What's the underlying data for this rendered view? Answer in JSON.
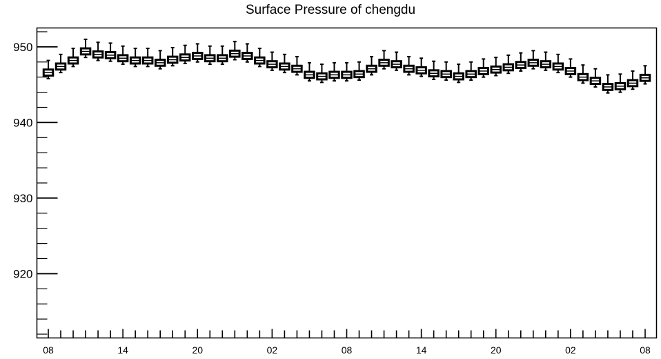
{
  "chart_data": {
    "type": "box",
    "title": "Surface Pressure of chengdu",
    "xlabel": "",
    "ylabel": "",
    "ylim": [
      911.5,
      952.5
    ],
    "y_ticks": [
      920,
      930,
      940,
      950
    ],
    "x_tick_labels": [
      "08",
      "14",
      "20",
      "02",
      "08",
      "14",
      "20",
      "02",
      "08"
    ],
    "grid": false,
    "legend": "none",
    "series": [
      {
        "medians": [
          946.6,
          947.4,
          948.2,
          949.4,
          949.0,
          948.9,
          948.5,
          948.2,
          948.2,
          947.9,
          948.3,
          948.6,
          948.8,
          948.5,
          948.5,
          949.1,
          948.8,
          948.2,
          947.7,
          947.4,
          947.1,
          946.3,
          946.1,
          946.3,
          946.3,
          946.4,
          947.1,
          947.9,
          947.7,
          947.1,
          946.9,
          946.5,
          946.4,
          946.1,
          946.4,
          946.8,
          947.0,
          947.3,
          947.6,
          947.9,
          947.7,
          947.4,
          946.8,
          946.0,
          945.5,
          944.7,
          944.8,
          945.2,
          945.9
        ],
        "q1": [
          946.2,
          947.0,
          947.8,
          949.0,
          948.6,
          948.5,
          948.1,
          947.8,
          947.8,
          947.5,
          947.9,
          948.2,
          948.4,
          948.1,
          948.1,
          948.7,
          948.4,
          947.8,
          947.3,
          947.0,
          946.7,
          945.9,
          945.7,
          945.9,
          945.9,
          946.0,
          946.7,
          947.5,
          947.3,
          946.7,
          946.5,
          946.1,
          946.0,
          945.7,
          946.0,
          946.4,
          946.6,
          946.9,
          947.2,
          947.5,
          947.3,
          947.0,
          946.4,
          945.6,
          945.1,
          944.3,
          944.4,
          944.8,
          945.5
        ],
        "q3": [
          947.0,
          947.8,
          948.6,
          949.8,
          949.4,
          949.3,
          948.9,
          948.6,
          948.6,
          948.3,
          948.7,
          949.0,
          949.2,
          948.9,
          948.9,
          949.5,
          949.2,
          948.6,
          948.1,
          947.8,
          947.5,
          946.7,
          946.5,
          946.7,
          946.7,
          946.8,
          947.5,
          948.3,
          948.1,
          947.5,
          947.3,
          946.9,
          946.8,
          946.5,
          946.8,
          947.2,
          947.4,
          947.7,
          948.0,
          948.3,
          948.1,
          947.8,
          947.2,
          946.4,
          945.9,
          945.1,
          945.2,
          945.6,
          946.3
        ],
        "whisker_low": [
          945.8,
          946.6,
          947.4,
          948.6,
          948.2,
          948.1,
          947.7,
          947.4,
          947.4,
          947.1,
          947.5,
          947.8,
          948.0,
          947.7,
          947.7,
          948.3,
          948.0,
          947.4,
          946.9,
          946.6,
          946.3,
          945.5,
          945.3,
          945.5,
          945.5,
          945.6,
          946.3,
          947.1,
          946.9,
          946.3,
          946.1,
          945.7,
          945.6,
          945.3,
          945.6,
          946.0,
          946.2,
          946.5,
          946.8,
          947.1,
          946.9,
          946.6,
          946.0,
          945.2,
          944.7,
          943.9,
          944.0,
          944.4,
          945.1
        ],
        "whisker_high": [
          948.2,
          949.0,
          949.8,
          951.0,
          950.6,
          950.5,
          950.1,
          949.8,
          949.8,
          949.5,
          949.9,
          950.2,
          950.4,
          950.1,
          950.1,
          950.7,
          950.4,
          949.8,
          949.3,
          949.0,
          948.7,
          947.9,
          947.7,
          947.9,
          947.9,
          948.0,
          948.7,
          949.5,
          949.3,
          948.7,
          948.5,
          948.1,
          948.0,
          947.7,
          948.0,
          948.4,
          948.6,
          948.9,
          949.2,
          949.5,
          949.3,
          949.0,
          948.4,
          947.6,
          947.1,
          946.3,
          946.4,
          946.8,
          947.5
        ]
      }
    ]
  }
}
